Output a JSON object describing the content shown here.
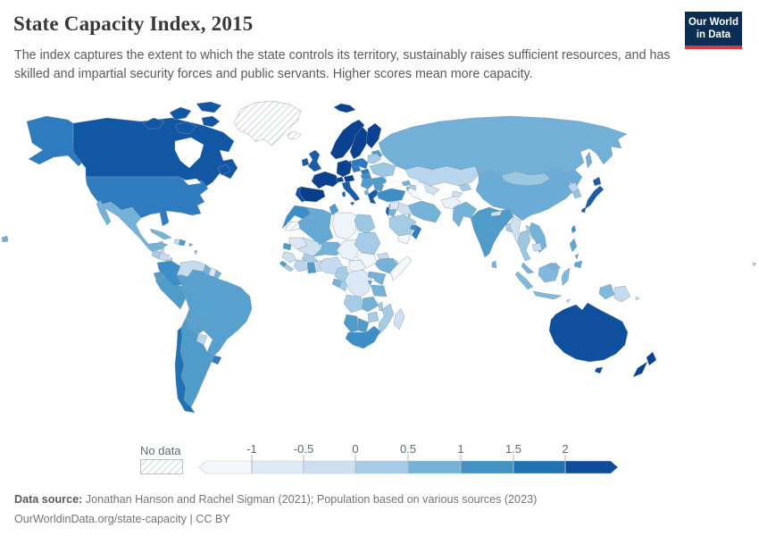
{
  "header": {
    "title": "State Capacity Index, 2015",
    "subtitle": "The index captures the extent to which the state controls its territory, sustainably raises sufficient resources, and has skilled and impartial security forces and public servants. Higher scores mean more capacity."
  },
  "logo": {
    "line1": "Our World",
    "line2": "in Data",
    "bg": "#0d2e54",
    "accent": "#d73a3a"
  },
  "legend": {
    "no_data_label": "No data",
    "ticks": [
      "-1",
      "-0.5",
      "0",
      "0.5",
      "1",
      "1.5",
      "2"
    ],
    "bin_colors": [
      "#f4f8fc",
      "#dfeaf6",
      "#cde0f1",
      "#a5cbe6",
      "#74b2d8",
      "#4292c6",
      "#2171b5",
      "#0d4d9b"
    ]
  },
  "footer": {
    "source_label": "Data source:",
    "source_text": " Jonathan Hanson and Rachel Sigman (2021); Population based on various sources (2023)",
    "note": "OurWorldinData.org/state-capacity | CC BY"
  },
  "chart_data": {
    "type": "choropleth",
    "title": "State Capacity Index, 2015",
    "year": 2015,
    "legend_bins": {
      "edges": [
        -1,
        -0.5,
        0,
        0.5,
        1,
        1.5,
        2
      ],
      "open_ended_low": true,
      "open_ended_high": true
    },
    "palette_low_to_high": [
      "#f4f8fc",
      "#dfeaf6",
      "#cde0f1",
      "#a5cbe6",
      "#74b2d8",
      "#4292c6",
      "#2171b5",
      "#0d4d9b"
    ],
    "no_data_regions": [
      "Greenland",
      "Iceland",
      "Western Sahara"
    ],
    "region_colors": {
      "usa": "#2e7cbf",
      "canada": "#1157a4",
      "greenland": "no-data",
      "iceland": "no-data",
      "mexico": "#74b2d8",
      "guatemala": "#a5cbe6",
      "belize": "#c5dbef",
      "honduras": "#c5dbef",
      "nicaragua": "#a5cbe6",
      "costa-rica": "#4f9ccb",
      "panama": "#74b2d8",
      "cuba": "#74b2d8",
      "jamaica": "#74b2d8",
      "haiti": "#c5dbef",
      "dominican-republic": "#4f9ccb",
      "puerto-rico": "#74b2d8",
      "lesser-antilles": "#74b2d8",
      "colombia": "#3d8ec6",
      "venezuela": "#c5dbef",
      "guyana": "#74b2d8",
      "suriname": "#dce8f5",
      "french-guiana": "#74b2d8",
      "ecuador": "#4f9ccb",
      "peru": "#4f9ccb",
      "brazil": "#58a1cf",
      "bolivia": "#58a1cf",
      "paraguay": "#b9d6ec",
      "uruguay": "#2e7cbf",
      "argentina": "#4f9ccb",
      "chile": "#2171b5",
      "norway": "#0a4190",
      "sweden": "#0a4190",
      "finland": "#0a4190",
      "denmark": "#0a4190",
      "svalbard": "#0a4190",
      "uk": "#1a5ca6",
      "ireland": "#1a5ca6",
      "france": "#0a4190",
      "spain": "#083d8c",
      "portugal": "#0f4f9e",
      "germany": "#0a4190",
      "switzerland": "#0a4190",
      "austria": "#0a4190",
      "italy": "#1a5ca6",
      "czechia": "#2c7abc",
      "poland": "#2c7abc",
      "slovakia": "#2c7abc",
      "hungary": "#3d8ec6",
      "baltics": "#4f9ccb",
      "belarus": "#a5cbe6",
      "ukraine": "#9cc7e3",
      "moldova": "#c5dbef",
      "romania": "#4f9ccb",
      "balkans": "#4f9ccb",
      "albania": "#74b2d8",
      "greece": "#1a5ca6",
      "bulgaria": "#4f9ccb",
      "russia": "#72b0d7",
      "kazakhstan": "#b9d6ec",
      "uzbekistan": "#cfe0f1",
      "turkmenistan": "#f4f8fc",
      "kyrgyzstan": "#a5cbe6",
      "tajikistan": "#cfe0f1",
      "georgia": "#74b2d8",
      "azerbaijan": "#a5cbe6",
      "armenia": "#74b2d8",
      "turkey": "#3d8ec6",
      "syria": "#dce8f5",
      "lebanon": "#a5cbe6",
      "israel": "#1a5ca6",
      "jordan": "#74b2d8",
      "iraq": "#cfe0f1",
      "saudi-arabia": "#a5cbe6",
      "yemen": "#f4f8fc",
      "oman": "#2e7cbf",
      "uae": "#3d8ec6",
      "kuwait": "#74b2d8",
      "iran": "#74b2d8",
      "afghanistan": "#eaf1f9",
      "pakistan": "#74b2d8",
      "india": "#4f9ccb",
      "nepal": "#cfe0f1",
      "bangladesh": "#a5cbe6",
      "sri-lanka": "#74b2d8",
      "myanmar": "#cfe0f1",
      "thailand": "#9cc7e3",
      "laos": "#a5cbe6",
      "vietnam": "#74b2d8",
      "cambodia": "#c5dbef",
      "malaysia": "#74b2d8",
      "indonesia": "#80b9dc",
      "philippines": "#5fa6d2",
      "china": "#6aacd5",
      "mongolia": "#9cc7e3",
      "north-korea": "#b9d6ec",
      "south-korea": "#95c4e1",
      "japan": "#1a5ca6",
      "taiwan": "#3d8ec6",
      "papua-new-guinea": "#c5dbef",
      "timor": "#c5dbef",
      "solomon-islands": "#c5dbef",
      "fiji": "#a5cbe6",
      "australia": "#0f4f9e",
      "new-zealand": "#0a4190",
      "morocco": "#3d8ec6",
      "western-sahara": "no-data",
      "algeria": "#66a9d4",
      "tunisia": "#4f9ccb",
      "libya": "#eef4fb",
      "egypt": "#9cc7e3",
      "mauritania": "#dce8f5",
      "mali": "#cfe0f1",
      "niger": "#74b2d8",
      "chad": "#eaf1f9",
      "sudan": "#a5cbe6",
      "eritrea": "#c5dbef",
      "djibouti": "#a5cbe6",
      "ethiopia": "#74b2d8",
      "somalia": "#f4f8fc",
      "senegal": "#4f9ccb",
      "guinea": "#cfe0f1",
      "sierra-leone": "#4f9ccb",
      "liberia": "#a5cbe6",
      "ivory-coast": "#b9d6ec",
      "ghana": "#4f9ccb",
      "togo-benin": "#c5dbef",
      "burkina-faso": "#a5cbe6",
      "nigeria": "#c5dbef",
      "cameroon": "#a5cbe6",
      "central-african-republic": "#eaf1f9",
      "south-sudan": "#f4f8fc",
      "gabon": "#74b2d8",
      "congo": "#a5cbe6",
      "drc": "#dce8f5",
      "uganda": "#74b2d8",
      "kenya": "#74b2d8",
      "rwanda": "#4f9ccb",
      "tanzania": "#74b2d8",
      "angola": "#a5cbe6",
      "zambia": "#74b2d8",
      "malawi": "#a5cbe6",
      "mozambique": "#a5cbe6",
      "zimbabwe": "#a5cbe6",
      "namibia": "#4f9ccb",
      "botswana": "#4f9ccb",
      "south-africa": "#3d8ec6",
      "madagascar": "#cfe0f1"
    }
  }
}
